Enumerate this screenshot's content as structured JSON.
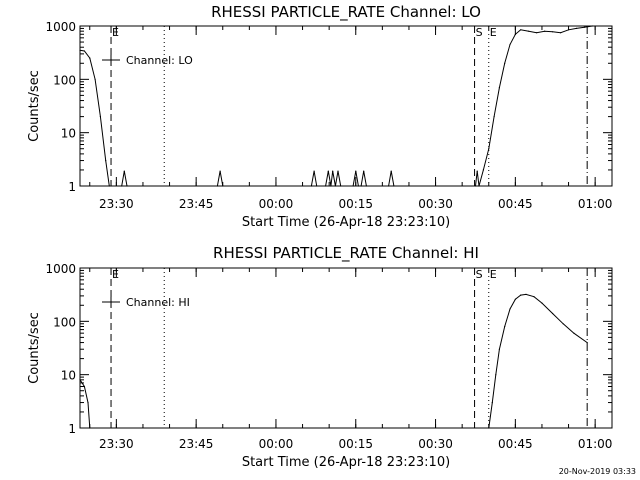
{
  "footer_timestamp": "20-Nov-2019 03:33",
  "colors": {
    "background": "#ffffff",
    "foreground": "#000000"
  },
  "chart_data": [
    {
      "type": "line",
      "title": "RHESSI PARTICLE_RATE Channel: LO",
      "xlabel": "Start Time (26-Apr-18 23:23:10)",
      "ylabel": "Counts/sec",
      "y_scale": "log",
      "ylim": [
        1,
        1000
      ],
      "y_ticks": [
        1,
        10,
        100,
        1000
      ],
      "y_tick_labels": [
        "1",
        "10",
        "100",
        "1000"
      ],
      "x_range": [
        "23:23:10",
        "01:03:10"
      ],
      "x_ticks": [
        "23:30",
        "23:45",
        "00:00",
        "00:15",
        "00:30",
        "00:45",
        "01:00"
      ],
      "legend": {
        "label": "Channel: LO",
        "position": "top-left"
      },
      "event_markers": [
        {
          "time": "23:29:00",
          "style": "dashed",
          "label": "E"
        },
        {
          "time": "23:39:00",
          "style": "dotted",
          "label": ""
        },
        {
          "time": "00:37:20",
          "style": "dashed",
          "label": "S"
        },
        {
          "time": "00:40:00",
          "style": "dotted",
          "label": "E"
        },
        {
          "time": "00:58:30",
          "style": "dashdot",
          "label": ""
        }
      ],
      "series": [
        {
          "values": [
            [
              "23:23:10",
              350
            ],
            [
              "23:24:00",
              340
            ],
            [
              "23:25:00",
              250
            ],
            [
              "23:26:00",
              100
            ],
            [
              "23:27:00",
              20
            ],
            [
              "23:28:00",
              3
            ],
            [
              "23:28:40",
              1
            ],
            [
              "23:31:00",
              1
            ],
            [
              "23:31:30",
              1.9
            ],
            [
              "23:32:00",
              1
            ],
            [
              "23:49:00",
              1
            ],
            [
              "23:49:30",
              1.9
            ],
            [
              "23:50:00",
              1
            ],
            [
              "00:06:40",
              1
            ],
            [
              "00:07:10",
              1.9
            ],
            [
              "00:07:40",
              1
            ],
            [
              "00:09:20",
              1
            ],
            [
              "00:09:50",
              1.9
            ],
            [
              "00:10:20",
              1
            ],
            [
              "00:10:40",
              1.9
            ],
            [
              "00:11:10",
              1
            ],
            [
              "00:11:40",
              1.9
            ],
            [
              "00:12:10",
              1
            ],
            [
              "00:14:30",
              1
            ],
            [
              "00:15:00",
              1.9
            ],
            [
              "00:15:30",
              1
            ],
            [
              "00:16:00",
              1
            ],
            [
              "00:16:30",
              1.9
            ],
            [
              "00:17:00",
              1
            ],
            [
              "00:21:10",
              1
            ],
            [
              "00:21:40",
              1.9
            ],
            [
              "00:22:10",
              1
            ],
            [
              "00:37:30",
              1
            ],
            [
              "00:37:50",
              1.9
            ],
            [
              "00:38:10",
              1
            ],
            [
              "00:39:00",
              2
            ],
            [
              "00:40:00",
              5
            ],
            [
              "00:41:00",
              20
            ],
            [
              "00:42:00",
              70
            ],
            [
              "00:43:00",
              200
            ],
            [
              "00:44:00",
              450
            ],
            [
              "00:45:00",
              700
            ],
            [
              "00:46:00",
              850
            ],
            [
              "00:47:30",
              800
            ],
            [
              "00:49:00",
              750
            ],
            [
              "00:50:30",
              800
            ],
            [
              "00:52:00",
              780
            ],
            [
              "00:53:30",
              750
            ],
            [
              "00:55:00",
              850
            ],
            [
              "00:56:30",
              900
            ],
            [
              "00:58:00",
              950
            ],
            [
              "00:59:30",
              1000
            ]
          ]
        }
      ]
    },
    {
      "type": "line",
      "title": "RHESSI PARTICLE_RATE Channel: HI",
      "xlabel": "Start Time (26-Apr-18 23:23:10)",
      "ylabel": "Counts/sec",
      "y_scale": "log",
      "ylim": [
        1,
        1000
      ],
      "y_ticks": [
        1,
        10,
        100,
        1000
      ],
      "y_tick_labels": [
        "1",
        "10",
        "100",
        "1000"
      ],
      "x_range": [
        "23:23:10",
        "01:03:10"
      ],
      "x_ticks": [
        "23:30",
        "23:45",
        "00:00",
        "00:15",
        "00:30",
        "00:45",
        "01:00"
      ],
      "legend": {
        "label": "Channel: HI",
        "position": "top-left"
      },
      "event_markers": [
        {
          "time": "23:29:00",
          "style": "dashed",
          "label": "E"
        },
        {
          "time": "23:39:00",
          "style": "dotted",
          "label": ""
        },
        {
          "time": "00:37:20",
          "style": "dashed",
          "label": "S"
        },
        {
          "time": "00:40:00",
          "style": "dotted",
          "label": "E"
        },
        {
          "time": "00:58:30",
          "style": "dashdot",
          "label": ""
        }
      ],
      "series": [
        {
          "values": [
            [
              "23:23:10",
              8
            ],
            [
              "23:24:00",
              6
            ],
            [
              "23:24:40",
              3
            ],
            [
              "23:25:00",
              1
            ],
            [
              "00:40:00",
              1
            ],
            [
              "00:40:40",
              3
            ],
            [
              "00:41:20",
              10
            ],
            [
              "00:42:00",
              30
            ],
            [
              "00:43:00",
              80
            ],
            [
              "00:44:00",
              170
            ],
            [
              "00:45:00",
              260
            ],
            [
              "00:46:00",
              310
            ],
            [
              "00:47:00",
              320
            ],
            [
              "00:48:30",
              290
            ],
            [
              "00:50:00",
              220
            ],
            [
              "00:52:00",
              140
            ],
            [
              "00:54:00",
              90
            ],
            [
              "00:56:00",
              60
            ],
            [
              "00:58:30",
              40
            ]
          ]
        }
      ]
    }
  ]
}
